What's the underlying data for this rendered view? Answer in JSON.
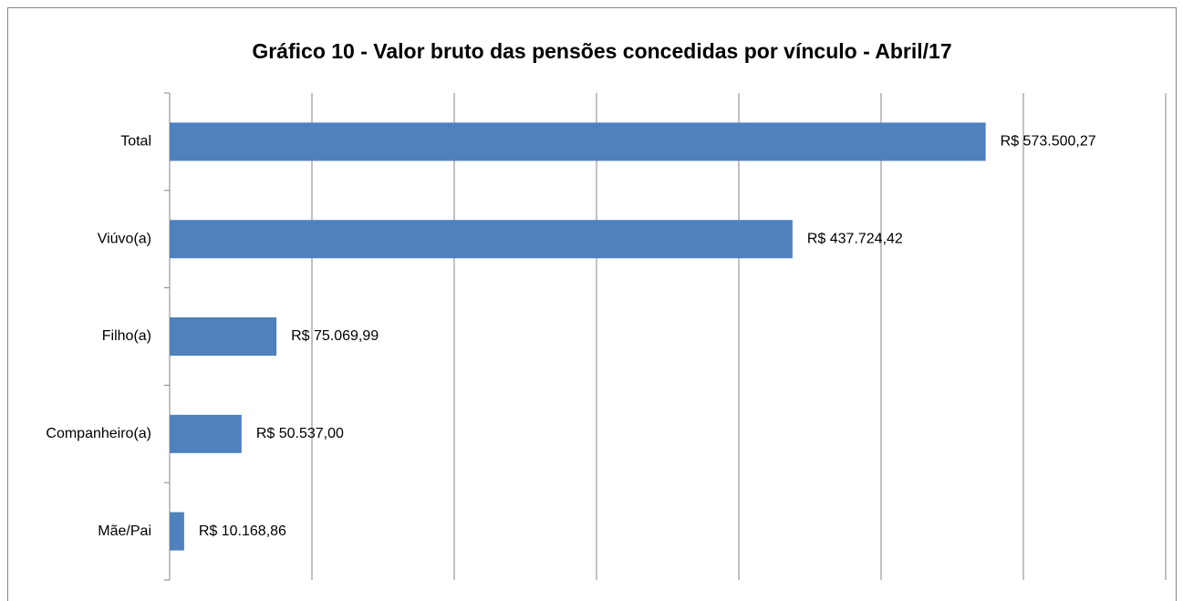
{
  "chart_data": {
    "type": "bar",
    "orientation": "horizontal",
    "title": "Gráfico 10 - Valor bruto das pensões concedidas por vínculo - Abril/17",
    "categories": [
      "Total",
      "Viúvo(a)",
      "Filho(a)",
      "Companheiro(a)",
      "Mãe/Pai"
    ],
    "values": [
      573500.27,
      437724.42,
      75069.99,
      50537.0,
      10168.86
    ],
    "value_labels": [
      "R$ 573.500,27",
      "R$ 437.724,42",
      "R$ 75.069,99",
      "R$ 50.537,00",
      "R$ 10.168,86"
    ],
    "color": "#4f81bd",
    "xlim": [
      0,
      700000
    ],
    "xticks": [
      0,
      100000,
      200000,
      300000,
      400000,
      500000,
      600000,
      700000
    ],
    "grid": true
  }
}
